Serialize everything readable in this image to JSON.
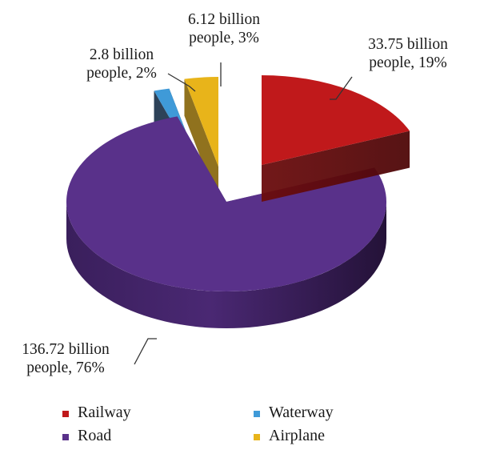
{
  "chart_data": {
    "type": "pie",
    "style": "3d-exploded",
    "categories": [
      "Railway",
      "Road",
      "Waterway",
      "Airplane"
    ],
    "values": [
      33.75,
      136.72,
      2.8,
      6.12
    ],
    "percentages": [
      19,
      76,
      2,
      3
    ],
    "colors": [
      "#c0191b",
      "#59318a",
      "#3f9ad8",
      "#e8b41a"
    ],
    "slice_labels": [
      [
        "33.75 billion",
        "people, 19%"
      ],
      [
        "136.72 billion",
        "people, 76%"
      ],
      [
        "2.8 billion",
        "people, 2%"
      ],
      [
        "6.12 billion",
        "people, 3%"
      ]
    ],
    "legend": {
      "position": "bottom",
      "items": [
        "Railway",
        "Waterway",
        "Road",
        "Airplane"
      ]
    }
  }
}
